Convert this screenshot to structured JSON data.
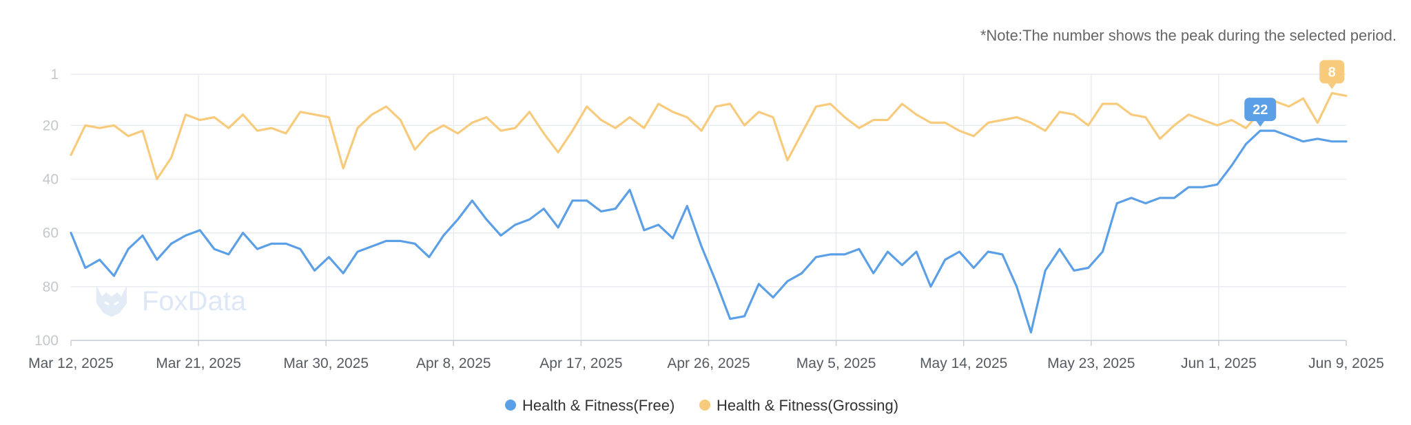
{
  "note": "*Note:The number shows the peak during the selected period.",
  "watermark": "FoxData",
  "colors": {
    "free": "#5b9fe6",
    "grossing": "#f8ca7b",
    "grid": "#e9ecef",
    "axis": "#c9ced6"
  },
  "chart_data": {
    "type": "line",
    "y_axis": {
      "reversed": true,
      "ylim": [
        1,
        100
      ],
      "ticks": [
        "1",
        "20",
        "40",
        "60",
        "80",
        "100"
      ]
    },
    "x_ticks": [
      "Mar 12, 2025",
      "Mar 21, 2025",
      "Mar 30, 2025",
      "Apr 8, 2025",
      "Apr 17, 2025",
      "Apr 26, 2025",
      "May 5, 2025",
      "May 14, 2025",
      "May 23, 2025",
      "Jun 1, 2025",
      "Jun 9, 2025"
    ],
    "legend_position": "bottom",
    "grid": true,
    "series": [
      {
        "name": "Health & Fitness(Free)",
        "color": "#5b9fe6",
        "peak_label": "22",
        "values": [
          60,
          73,
          70,
          76,
          66,
          61,
          70,
          64,
          61,
          59,
          66,
          68,
          60,
          66,
          64,
          64,
          66,
          74,
          69,
          75,
          67,
          65,
          63,
          63,
          64,
          69,
          61,
          55,
          48,
          55,
          61,
          57,
          55,
          51,
          58,
          48,
          48,
          52,
          51,
          44,
          59,
          57,
          62,
          50,
          65,
          78,
          92,
          91,
          79,
          84,
          78,
          75,
          69,
          68,
          68,
          66,
          75,
          67,
          72,
          67,
          80,
          70,
          67,
          73,
          67,
          68,
          80,
          97,
          74,
          66,
          74,
          73,
          67,
          49,
          47,
          49,
          47,
          47,
          43,
          43,
          42,
          35,
          27,
          22,
          22,
          24,
          26,
          25,
          26,
          26
        ]
      },
      {
        "name": "Health & Fitness(Grossing)",
        "color": "#f8ca7b",
        "peak_label": "8",
        "values": [
          31,
          20,
          21,
          20,
          24,
          22,
          40,
          32,
          16,
          18,
          17,
          21,
          16,
          22,
          21,
          23,
          15,
          16,
          17,
          36,
          21,
          16,
          13,
          18,
          29,
          23,
          20,
          23,
          19,
          17,
          22,
          21,
          15,
          23,
          30,
          22,
          13,
          18,
          21,
          17,
          21,
          12,
          15,
          17,
          22,
          13,
          12,
          20,
          15,
          17,
          33,
          23,
          13,
          12,
          17,
          21,
          18,
          18,
          12,
          16,
          19,
          19,
          22,
          24,
          19,
          18,
          17,
          19,
          22,
          15,
          16,
          20,
          12,
          12,
          16,
          17,
          25,
          20,
          16,
          18,
          20,
          18,
          21,
          15,
          11,
          13,
          10,
          19,
          8,
          9
        ]
      }
    ]
  }
}
